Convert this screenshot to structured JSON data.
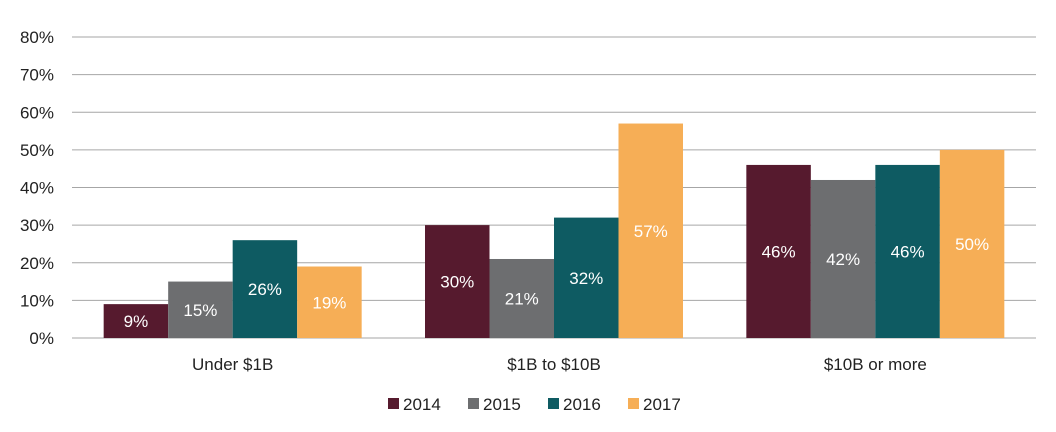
{
  "chart_data": {
    "type": "bar",
    "categories": [
      "Under $1B",
      "$1B to $10B",
      "$10B or more"
    ],
    "series": [
      {
        "name": "2014",
        "values": [
          9,
          30,
          46
        ],
        "labels": [
          "9%",
          "30%",
          "46%"
        ],
        "color": "#561a2e"
      },
      {
        "name": "2015",
        "values": [
          15,
          21,
          42
        ],
        "labels": [
          "15%",
          "21%",
          "42%"
        ],
        "color": "#6d6e70"
      },
      {
        "name": "2016",
        "values": [
          26,
          32,
          46
        ],
        "labels": [
          "26%",
          "32%",
          "46%"
        ],
        "color": "#0e5b62"
      },
      {
        "name": "2017",
        "values": [
          19,
          57,
          50
        ],
        "labels": [
          "19%",
          "57%",
          "50%"
        ],
        "color": "#f6ae56"
      }
    ],
    "yticks": [
      "0%",
      "10%",
      "20%",
      "30%",
      "40%",
      "50%",
      "60%",
      "70%",
      "80%"
    ],
    "ylim": [
      0,
      80
    ],
    "grid": true,
    "legend_position": "bottom-center",
    "gridline_color": "#a6a6a6"
  }
}
